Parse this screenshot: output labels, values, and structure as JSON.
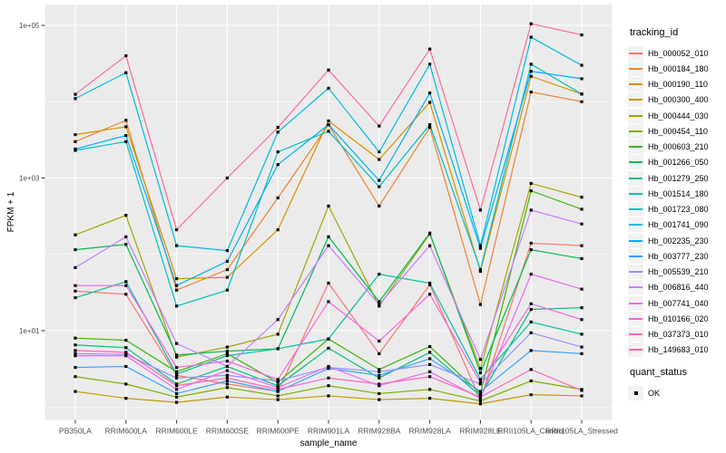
{
  "chart_data": {
    "type": "line",
    "title": "",
    "xlabel": "sample_name",
    "ylabel": "FPKM + 1",
    "y_scale": "log10",
    "ylim": [
      0.68,
      180000
    ],
    "grid": "on",
    "legend_position": "right",
    "point_color": "#000000",
    "point_shape": "square",
    "panel_color": "#ebebeb",
    "grid_color": "#ffffff",
    "y_ticks": [
      {
        "label": "1e+05",
        "value": 100000
      },
      {
        "label": "1e+03",
        "value": 1000
      },
      {
        "label": "1e+01",
        "value": 10
      }
    ],
    "y_minor_ticks": [
      1,
      100,
      10000
    ],
    "categories": [
      "PB350LA",
      "RRIM600LA",
      "RRIM600LE",
      "RRIM600SE",
      "RRIM600PE",
      "RRIM901LA",
      "RRIM928BA",
      "RRIM928LA",
      "RRIM928LE",
      "RRII105LA_Control",
      "RRII105LA_Stressed"
    ],
    "legend": {
      "series_title": "tracking_id",
      "point_legend_title": "quant_status",
      "point_legend_label": "OK"
    },
    "series": [
      {
        "name": "Hb_000052_010",
        "color": "#F8766D",
        "values": [
          33,
          30,
          2.6,
          2.0,
          1.6,
          42,
          5.0,
          40,
          1.25,
          140,
          130
        ]
      },
      {
        "name": "Hb_000184_180",
        "color": "#EA8331",
        "values": [
          3000,
          5700,
          34,
          63,
          550,
          5000,
          430,
          4600,
          22,
          13400,
          10000
        ]
      },
      {
        "name": "Hb_000190_110",
        "color": "#D89000",
        "values": [
          3700,
          4700,
          48,
          50,
          210,
          5600,
          1750,
          9800,
          60,
          21500,
          12600
        ]
      },
      {
        "name": "Hb_000300_400",
        "color": "#C09B00",
        "values": [
          1.6,
          1.3,
          1.15,
          1.35,
          1.25,
          1.4,
          1.25,
          1.3,
          1.1,
          1.45,
          1.4
        ]
      },
      {
        "name": "Hb_000444_030",
        "color": "#A3A500",
        "values": [
          180,
          325,
          4.5,
          6.1,
          9.0,
          430,
          21,
          185,
          3.2,
          850,
          560
        ]
      },
      {
        "name": "Hb_000454_110",
        "color": "#7CAE00",
        "values": [
          2.5,
          2.0,
          1.35,
          1.8,
          1.4,
          1.9,
          1.5,
          1.7,
          1.2,
          2.2,
          1.7
        ]
      },
      {
        "name": "Hb_000603_210",
        "color": "#39B600",
        "values": [
          8.0,
          7.5,
          2.9,
          5.0,
          2.1,
          7.8,
          3.1,
          6.2,
          1.5,
          680,
          390
        ]
      },
      {
        "name": "Hb_001266_050",
        "color": "#00BB4E",
        "values": [
          115,
          135,
          4.8,
          5.4,
          5.8,
          170,
          24,
          190,
          2.8,
          115,
          88
        ]
      },
      {
        "name": "Hb_001279_250",
        "color": "#00BF7D",
        "values": [
          6.5,
          6.0,
          2.0,
          3.4,
          1.9,
          5.9,
          2.4,
          5.2,
          1.4,
          19,
          20
        ]
      },
      {
        "name": "Hb_001514_180",
        "color": "#00C1A3",
        "values": [
          27,
          44,
          2.7,
          4.7,
          5.8,
          7.8,
          55,
          42,
          2.3,
          13,
          9.0
        ]
      },
      {
        "name": "Hb_001723_080",
        "color": "#00BFC4",
        "values": [
          2300,
          3000,
          21,
          34,
          2200,
          4100,
          770,
          5000,
          63,
          31000,
          12600
        ]
      },
      {
        "name": "Hb_001741_090",
        "color": "#00BAE0",
        "values": [
          11000,
          24000,
          130,
          112,
          4000,
          15000,
          2200,
          31000,
          130,
          70000,
          30000
        ]
      },
      {
        "name": "Hb_002235_230",
        "color": "#00B0F6",
        "values": [
          2400,
          3600,
          39,
          81,
          1500,
          5000,
          930,
          13000,
          120,
          25000,
          20000
        ]
      },
      {
        "name": "Hb_003777_230",
        "color": "#35A2FF",
        "values": [
          3.3,
          3.4,
          1.5,
          2.2,
          1.6,
          3.2,
          2.6,
          4.3,
          1.6,
          5.5,
          5.0
        ]
      },
      {
        "name": "Hb_005539_210",
        "color": "#9590FF",
        "values": [
          5.0,
          4.9,
          2.4,
          2.6,
          2.2,
          3.3,
          2.9,
          3.6,
          2.0,
          9.4,
          6.1
        ]
      },
      {
        "name": "Hb_006816_440",
        "color": "#C77CFF",
        "values": [
          67,
          170,
          6.8,
          3.4,
          14,
          130,
          22,
          130,
          4.2,
          380,
          250
        ]
      },
      {
        "name": "Hb_007741_040",
        "color": "#E76BF3",
        "values": [
          4.7,
          4.7,
          1.7,
          3.0,
          1.8,
          3.4,
          1.9,
          2.9,
          1.3,
          55,
          35
        ]
      },
      {
        "name": "Hb_010166_020",
        "color": "#FA62DB",
        "values": [
          39,
          39,
          3.3,
          4.0,
          2.3,
          24,
          7.3,
          30,
          2.1,
          22.5,
          14
        ]
      },
      {
        "name": "Hb_037373_010",
        "color": "#FF62BC",
        "values": [
          5.5,
          5.2,
          1.9,
          2.4,
          1.7,
          2.4,
          2.0,
          2.5,
          1.35,
          3.1,
          1.65
        ]
      },
      {
        "name": "Hb_149683_010",
        "color": "#FF6A98",
        "values": [
          12500,
          40000,
          210,
          1000,
          4600,
          26000,
          4800,
          49000,
          380,
          105000,
          75000
        ]
      }
    ]
  }
}
